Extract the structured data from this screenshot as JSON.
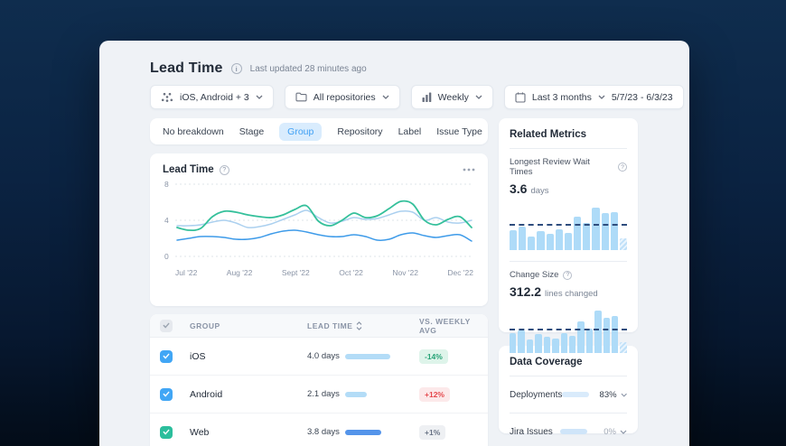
{
  "page": {
    "title": "Lead Time",
    "updated": "Last updated 28 minutes ago"
  },
  "filters": {
    "teams": {
      "label": "iOS, Android + 3"
    },
    "repos": {
      "label": "All repositories"
    },
    "interval": {
      "label": "Weekly"
    },
    "dates": {
      "label": "Last 3 months",
      "range": "5/7/23  -  6/3/23"
    }
  },
  "tabs": {
    "active": "Group",
    "items": [
      {
        "label": "No breakdown"
      },
      {
        "label": "Stage"
      },
      {
        "label": "Group"
      },
      {
        "label": "Repository"
      },
      {
        "label": "Label"
      },
      {
        "label": "Issue Type"
      }
    ]
  },
  "chart_data": [
    {
      "id": "lead-time-trend",
      "type": "line",
      "title": "Lead Time",
      "x_ticks": [
        "Jul '22",
        "Aug '22",
        "Sept '22",
        "Oct '22",
        "Nov '22",
        "Dec '22"
      ],
      "y_ticks": [
        8,
        4,
        0
      ],
      "ylim": [
        0,
        8
      ],
      "grid": "dashed-horizontal",
      "legend": "none",
      "unit": "days",
      "series": [
        {
          "name": "light-blue-line",
          "color": "#abd0ef",
          "values": [
            3.4,
            3.4,
            3.5,
            3.8,
            4.0,
            3.7,
            3.2,
            3.3,
            3.6,
            4.1,
            4.6,
            5.1,
            4.3,
            3.7,
            3.9,
            4.3,
            4.1,
            4.2,
            4.6,
            5.0,
            4.9,
            4.0,
            4.3,
            3.8,
            3.7,
            4.0
          ]
        },
        {
          "name": "blue-line",
          "color": "#3e9be9",
          "values": [
            1.8,
            2.0,
            2.2,
            2.2,
            2.1,
            1.9,
            1.9,
            2.1,
            2.5,
            2.8,
            2.9,
            2.7,
            2.4,
            2.2,
            2.2,
            2.4,
            2.2,
            1.8,
            1.9,
            2.4,
            2.6,
            2.3,
            2.1,
            2.3,
            2.4,
            1.7
          ]
        },
        {
          "name": "green-line",
          "color": "#35c09b",
          "values": [
            3.2,
            2.9,
            3.1,
            4.4,
            5.0,
            4.9,
            4.6,
            4.4,
            4.3,
            4.6,
            5.2,
            5.6,
            3.9,
            3.4,
            4.0,
            4.8,
            4.3,
            4.5,
            5.3,
            6.1,
            5.8,
            4.0,
            3.5,
            4.1,
            4.4,
            3.2
          ]
        }
      ]
    },
    {
      "id": "review-wait",
      "type": "bar",
      "title": "Longest Review Wait Times",
      "value": "3.6",
      "unit": "days",
      "bar_heights_pct": [
        45,
        52,
        30,
        42,
        36,
        47,
        38,
        75,
        60,
        95,
        82,
        85,
        27
      ],
      "last_bar_style": "hatched",
      "avg_line_pct": 55,
      "bar_color": "#aedbf8"
    },
    {
      "id": "change-size",
      "type": "bar",
      "title": "Change Size",
      "value": "312.2",
      "unit": "lines changed",
      "bar_heights_pct": [
        45,
        50,
        30,
        42,
        36,
        33,
        45,
        38,
        70,
        55,
        95,
        78,
        82,
        25
      ],
      "last_bar_style": "hatched",
      "avg_line_pct": 50,
      "bar_color": "#aedbf8"
    }
  ],
  "table": {
    "columns": [
      "GROUP",
      "LEAD TIME",
      "VS. WEEKLY AVG"
    ],
    "select_all_checked": true,
    "rows": [
      {
        "group": "iOS",
        "lead_time": "4.0 days",
        "bar_pct": 62,
        "bar_style": "light-blue",
        "delta": "-14%",
        "delta_style": "good",
        "checkbox_color": "blue",
        "checked": true
      },
      {
        "group": "Android",
        "lead_time": "2.1 days",
        "bar_pct": 30,
        "bar_style": "light-blue",
        "delta": "+12%",
        "delta_style": "bad",
        "checkbox_color": "blue",
        "checked": true
      },
      {
        "group": "Web",
        "lead_time": "3.8 days",
        "bar_pct": 50,
        "bar_style": "blue",
        "delta": "+1%",
        "delta_style": "neutral",
        "checkbox_color": "green",
        "checked": true
      }
    ]
  },
  "sidebar": {
    "title": "Related Metrics"
  },
  "coverage": {
    "title": "Data Coverage",
    "rows": [
      {
        "label": "Deployments",
        "pct_label": "83%",
        "fill_pct": 83
      },
      {
        "label": "Jira Issues",
        "pct_label": "0%",
        "fill_pct": 0
      }
    ]
  },
  "colors": {
    "bg_top": "#0f2d4e",
    "bg_bottom": "#030c18",
    "panel_bg": "#eff2f6",
    "card_bg": "#ffffff",
    "accent_blue": "#3fa0f4",
    "tab_active_bg": "#d9ecfd",
    "line_green": "#35c09b",
    "line_light_blue": "#abd0ef",
    "line_blue": "#3e9be9",
    "mini_bar": "#aedbf8",
    "avg_line": "#2e4d7d",
    "badge_good_bg": "#def4ea",
    "badge_good_text": "#27a376",
    "badge_bad_bg": "#fce9ea",
    "badge_bad_text": "#e5484d",
    "badge_neutral_bg": "#eef0f3",
    "badge_neutral_text": "#697386",
    "checkbox_blue": "#41a6f5",
    "checkbox_green": "#2bbe9c",
    "coverage_fill": "#2e8eee",
    "coverage_track": "#d9ebfb",
    "table_bar_light": "#b3dcf7",
    "table_bar_blue": "#5494ea"
  }
}
